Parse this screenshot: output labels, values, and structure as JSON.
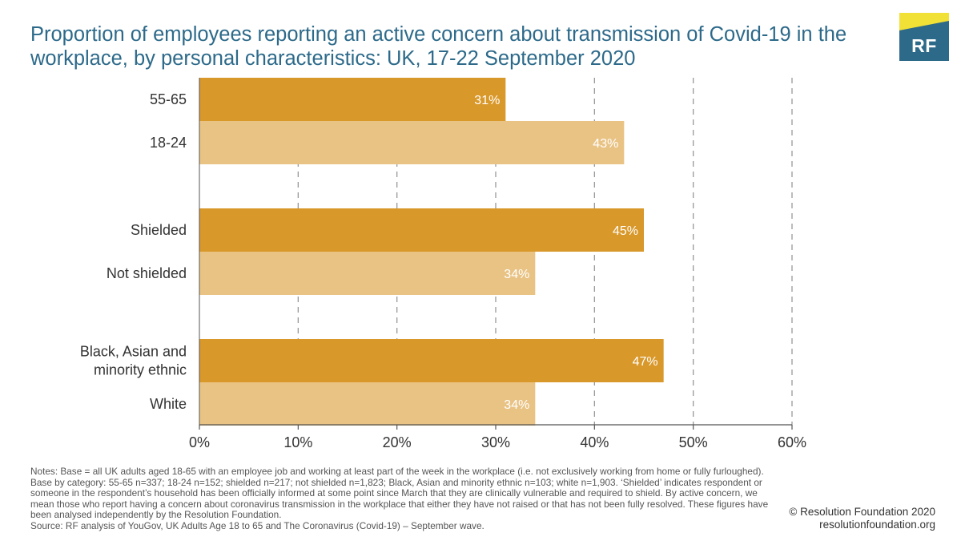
{
  "title": "Proportion of employees reporting an active concern about transmission of Covid-19 in the workplace, by personal characteristics: UK, 17-22 September 2020",
  "logo": {
    "text": "RF",
    "colors": {
      "block": "#2d6a8a",
      "accent": "#f1e035"
    }
  },
  "colors": {
    "dark_bar": "#d9982a",
    "light_bar": "#e9c384",
    "grid": "#999999",
    "axis": "#555555",
    "bar_label": "#ffffff"
  },
  "chart_data": {
    "type": "bar",
    "orientation": "horizontal",
    "categories": [
      "55-65",
      "18-24",
      "Shielded",
      "Not shielded",
      "Black, Asian and minority ethnic",
      "White"
    ],
    "category_lines": [
      [
        "55-65"
      ],
      [
        "18-24"
      ],
      [
        "Shielded"
      ],
      [
        "Not shielded"
      ],
      [
        "Black, Asian and",
        "minority ethnic"
      ],
      [
        "White"
      ]
    ],
    "groups": [
      [
        "55-65",
        "18-24"
      ],
      [
        "Shielded",
        "Not shielded"
      ],
      [
        "Black, Asian and minority ethnic",
        "White"
      ]
    ],
    "values": [
      31,
      43,
      45,
      34,
      47,
      34
    ],
    "data_labels": [
      "31%",
      "43%",
      "45%",
      "34%",
      "47%",
      "34%"
    ],
    "shades": [
      "dark",
      "light",
      "dark",
      "light",
      "dark",
      "light"
    ],
    "xlim": [
      0,
      60
    ],
    "xticks": [
      0,
      10,
      20,
      30,
      40,
      50,
      60
    ],
    "xtick_labels": [
      "0%",
      "10%",
      "20%",
      "30%",
      "40%",
      "50%",
      "60%"
    ],
    "grid": true,
    "legend": "none"
  },
  "notes": "Notes: Base = all UK adults aged 18-65 with an employee job and working at least part of the week in the workplace (i.e. not exclusively working from home or fully furloughed). Base by category: 55-65 n=337; 18-24 n=152; shielded n=217; not shielded n=1,823; Black, Asian and minority ethnic n=103; white n=1,903. ‘Shielded’ indicates respondent or someone in the respondent’s household has been officially informed at some point since March that they are clinically vulnerable and required to shield. By active concern, we mean those who report having a concern about coronavirus transmission in the workplace that either they have not raised or that has not been fully resolved. These figures have been analysed independently by the Resolution Foundation.",
  "source": "Source: RF analysis of YouGov, UK Adults Age 18 to 65 and The Coronavirus (Covid-19) – September wave.",
  "copyright": "© Resolution Foundation 2020",
  "website": "resolutionfoundation.org"
}
